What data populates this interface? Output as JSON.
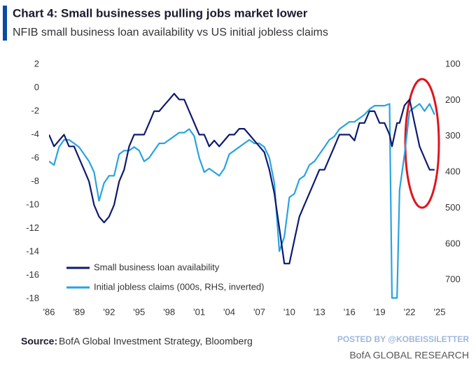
{
  "chart_data": {
    "type": "line",
    "title": "Chart 4: Small businesses pulling jobs market lower",
    "subtitle": "NFIB small business loan availability vs US initial jobless claims",
    "source_label": "Source:",
    "source": "BofA Global Investment Strategy, Bloomberg",
    "watermark": "POSTED BY @KOBEISSILETTER",
    "footer": "BofA GLOBAL RESEARCH",
    "xlim": [
      1986,
      2025
    ],
    "xticks": [
      {
        "value": 1986,
        "label": "'86"
      },
      {
        "value": 1989,
        "label": "'89"
      },
      {
        "value": 1992,
        "label": "'92"
      },
      {
        "value": 1995,
        "label": "'95"
      },
      {
        "value": 1998,
        "label": "'98"
      },
      {
        "value": 2001,
        "label": "'01"
      },
      {
        "value": 2004,
        "label": "'04"
      },
      {
        "value": 2007,
        "label": "'07"
      },
      {
        "value": 2010,
        "label": "'10"
      },
      {
        "value": 2013,
        "label": "'13"
      },
      {
        "value": 2016,
        "label": "'16"
      },
      {
        "value": 2019,
        "label": "'19"
      },
      {
        "value": 2022,
        "label": "'22"
      },
      {
        "value": 2025,
        "label": "'25"
      }
    ],
    "ylim": [
      -18,
      2
    ],
    "yticks": [
      2,
      0,
      -2,
      -4,
      -6,
      -8,
      -10,
      -12,
      -14,
      -16,
      -18
    ],
    "y2lim": [
      100,
      752
    ],
    "y2ticks": [
      100,
      200,
      300,
      400,
      500,
      600,
      700
    ],
    "y2_inverted": true,
    "x": [
      1986,
      1986.5,
      1987,
      1987.5,
      1988,
      1988.5,
      1989,
      1989.5,
      1990,
      1990.5,
      1991,
      1991.5,
      1992,
      1992.5,
      1993,
      1993.5,
      1994,
      1994.5,
      1995,
      1995.5,
      1996,
      1996.5,
      1997,
      1997.5,
      1998,
      1998.5,
      1999,
      1999.5,
      2000,
      2000.5,
      2001,
      2001.5,
      2002,
      2002.5,
      2003,
      2003.5,
      2004,
      2004.5,
      2005,
      2005.5,
      2006,
      2006.5,
      2007,
      2007.5,
      2008,
      2008.5,
      2009,
      2009.5,
      2010,
      2010.5,
      2011,
      2011.5,
      2012,
      2012.5,
      2013,
      2013.5,
      2014,
      2014.5,
      2015,
      2015.5,
      2016,
      2016.5,
      2017,
      2017.5,
      2018,
      2018.5,
      2019,
      2019.5,
      2020,
      2020.25,
      2020.5,
      2020.75,
      2021,
      2021.5,
      2022,
      2022.5,
      2023,
      2023.5,
      2024,
      2024.5
    ],
    "series": [
      {
        "name": "Small business loan availability",
        "color": "#0d1a6e",
        "values": [
          -4,
          -5,
          -4.5,
          -4,
          -5,
          -5,
          -6,
          -7,
          -8,
          -10,
          -11,
          -11.5,
          -11,
          -10,
          -8,
          -7,
          -5,
          -4,
          -4,
          -4,
          -3,
          -2,
          -2,
          -1.5,
          -1,
          -0.5,
          -1,
          -1,
          -2,
          -3,
          -4,
          -4,
          -5,
          -4.5,
          -5,
          -4.5,
          -4,
          -4,
          -3.5,
          -3.5,
          -4,
          -4.5,
          -5,
          -5.5,
          -7,
          -9,
          -12,
          -15,
          -15,
          -13,
          -11,
          -10,
          -9,
          -8,
          -7,
          -7,
          -6,
          -5,
          -4,
          -4,
          -4,
          -4.5,
          -3,
          -3,
          -2,
          -2,
          -3,
          -3,
          -4,
          -5,
          -4,
          -3,
          -3,
          -1.5,
          -1,
          -3,
          -5,
          -6,
          -7,
          -7
        ]
      },
      {
        "name": "Initial jobless claims (000s, RHS, inverted)",
        "color": "#29a3e0",
        "axis": "y2",
        "values": [
          370,
          380,
          330,
          310,
          310,
          320,
          330,
          350,
          370,
          400,
          480,
          430,
          410,
          410,
          350,
          340,
          340,
          330,
          340,
          370,
          360,
          340,
          320,
          320,
          310,
          300,
          290,
          290,
          280,
          300,
          360,
          400,
          390,
          400,
          410,
          390,
          350,
          340,
          330,
          320,
          310,
          320,
          320,
          330,
          360,
          430,
          620,
          580,
          470,
          460,
          420,
          410,
          380,
          370,
          350,
          330,
          310,
          300,
          280,
          270,
          260,
          260,
          250,
          240,
          225,
          215,
          215,
          215,
          210,
          750,
          750,
          750,
          450,
          350,
          230,
          220,
          210,
          230,
          210,
          240
        ]
      }
    ]
  }
}
